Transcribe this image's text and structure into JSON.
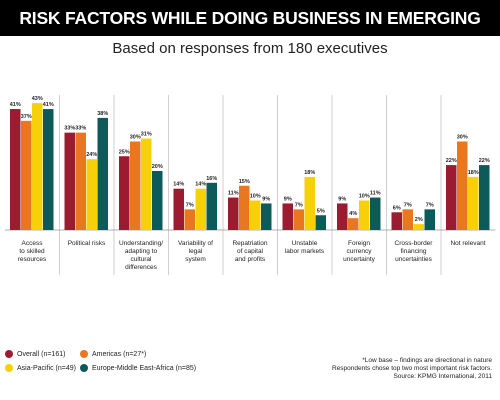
{
  "chart_data": {
    "type": "bar",
    "title": "RISK FACTORS WHILE DOING BUSINESS IN EMERGING MARKETS",
    "subtitle": "Based on responses from 180 executives",
    "categories": [
      "Access\nto skilled\nresources",
      "Political risks",
      "Understanding/\nadapting to\ncultural\ndifferences",
      "Variability of\nlegal\nsystem",
      "Repatriation\nof capital\nand profits",
      "Unstable\nlabor markets",
      "Foreign\ncurrency\nuncertainty",
      "Cross-border\nfinancing\nuncertainties",
      "Not relevant"
    ],
    "series": [
      {
        "name": "Overall (n=161)",
        "color": "#9b1b30",
        "values": [
          41,
          33,
          25,
          14,
          11,
          9,
          9,
          6,
          22
        ],
        "value_labels": [
          "41%",
          "33%",
          "25%",
          "14%",
          "11%",
          "9%",
          "9%",
          "6%",
          "22%"
        ]
      },
      {
        "name": "Americas (n=27*)",
        "color": "#e8771f",
        "values": [
          37,
          33,
          30,
          7,
          15,
          7,
          4,
          7,
          30
        ],
        "value_labels": [
          "37%",
          "33%",
          "30%",
          "7%",
          "15%",
          "7%",
          "4%",
          "7%",
          "30%"
        ]
      },
      {
        "name": "Asia-Pacific (n=49)",
        "color": "#f6d10a",
        "values": [
          43,
          24,
          31,
          14,
          10,
          18,
          10,
          2,
          18
        ],
        "value_labels": [
          "43%",
          "24%",
          "31%",
          "14%",
          "10%",
          "18%",
          "10%",
          "2%",
          "18%"
        ]
      },
      {
        "name": "Europe-Middle East-Africa (n=85)",
        "color": "#0c5a5a",
        "values": [
          41,
          38,
          20,
          16,
          9,
          5,
          11,
          7,
          22
        ],
        "value_labels": [
          "41%",
          "38%",
          "20%",
          "16%",
          "9%",
          "5%",
          "11%",
          "7%",
          "22%"
        ]
      }
    ],
    "notes": [
      "*Low base – findings are directional in nature",
      "Respondents chose top two most important risk factors.",
      "Source: KPMG International, 2011"
    ]
  }
}
